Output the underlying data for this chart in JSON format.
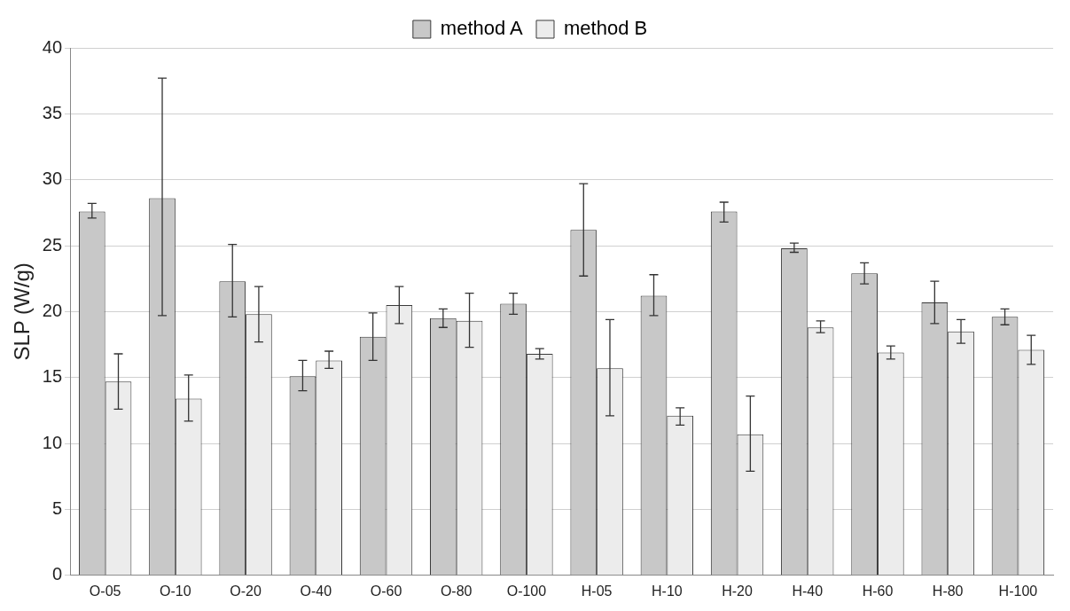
{
  "chart_data": {
    "type": "bar",
    "ylabel": "SLP (W/g)",
    "categories": [
      "O-05",
      "O-10",
      "O-20",
      "O-40",
      "O-60",
      "O-80",
      "O-100",
      "H-05",
      "H-10",
      "H-20",
      "H-40",
      "H-60",
      "H-80",
      "H-100"
    ],
    "series": [
      {
        "name": "method A",
        "color": "#c8c8c8",
        "values": [
          27.6,
          28.6,
          22.3,
          15.1,
          18.1,
          19.5,
          20.6,
          26.2,
          21.2,
          27.6,
          24.8,
          22.9,
          20.7,
          19.6
        ],
        "errors": [
          [
            27.1,
            28.2
          ],
          [
            19.7,
            37.7
          ],
          [
            19.6,
            25.1
          ],
          [
            14.0,
            16.3
          ],
          [
            16.3,
            19.9
          ],
          [
            18.8,
            20.2
          ],
          [
            19.8,
            21.4
          ],
          [
            22.7,
            29.7
          ],
          [
            19.7,
            22.8
          ],
          [
            26.8,
            28.3
          ],
          [
            24.5,
            25.2
          ],
          [
            22.1,
            23.7
          ],
          [
            19.1,
            22.3
          ],
          [
            19.0,
            20.2
          ]
        ]
      },
      {
        "name": "method B",
        "color": "#ececec",
        "values": [
          14.7,
          13.4,
          19.8,
          16.3,
          20.5,
          19.3,
          16.8,
          15.7,
          12.1,
          10.7,
          18.8,
          16.9,
          18.5,
          17.1
        ],
        "errors": [
          [
            12.6,
            16.8
          ],
          [
            11.7,
            15.2
          ],
          [
            17.7,
            21.9
          ],
          [
            15.7,
            17.0
          ],
          [
            19.1,
            21.9
          ],
          [
            17.3,
            21.4
          ],
          [
            16.4,
            17.2
          ],
          [
            12.1,
            19.4
          ],
          [
            11.4,
            12.7
          ],
          [
            7.9,
            13.6
          ],
          [
            18.4,
            19.3
          ],
          [
            16.4,
            17.4
          ],
          [
            17.6,
            19.4
          ],
          [
            16.0,
            18.2
          ]
        ]
      }
    ],
    "ylim": [
      0,
      40
    ],
    "yticks": [
      0,
      5,
      10,
      15,
      20,
      25,
      30,
      35,
      40
    ],
    "grid": "y",
    "legend": "top"
  }
}
